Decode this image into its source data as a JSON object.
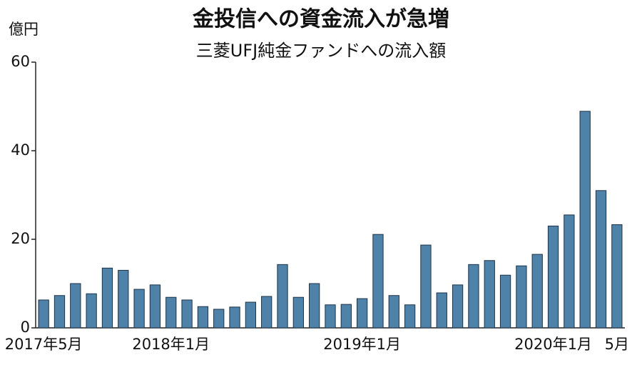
{
  "chart_data": {
    "type": "bar",
    "title": "金投信への資金流入が急増",
    "subtitle": "三菱UFJ純金ファンドへの流入額",
    "y_unit": "億円",
    "categories": [
      "2017年5月",
      null,
      null,
      null,
      null,
      null,
      null,
      null,
      "2018年1月",
      null,
      null,
      null,
      null,
      null,
      null,
      null,
      null,
      null,
      null,
      null,
      "2019年1月",
      null,
      null,
      null,
      null,
      null,
      null,
      null,
      null,
      null,
      null,
      null,
      "2020年1月",
      null,
      null,
      null,
      "5月"
    ],
    "values": [
      6.3,
      7.3,
      10,
      7.7,
      13.5,
      13,
      8.7,
      9.7,
      6.9,
      6.3,
      4.8,
      4.2,
      4.7,
      5.8,
      7.1,
      14.3,
      6.9,
      10,
      5.2,
      5.3,
      6.6,
      21.1,
      7.3,
      5.2,
      18.7,
      7.9,
      9.7,
      14.3,
      15.2,
      11.9,
      14,
      16.6,
      23,
      25.5,
      48.9,
      31,
      23.3
    ],
    "color": "#4f82a8",
    "ylim": [
      0,
      60
    ],
    "yticks": [
      0,
      20,
      40,
      60
    ],
    "grid": false
  }
}
